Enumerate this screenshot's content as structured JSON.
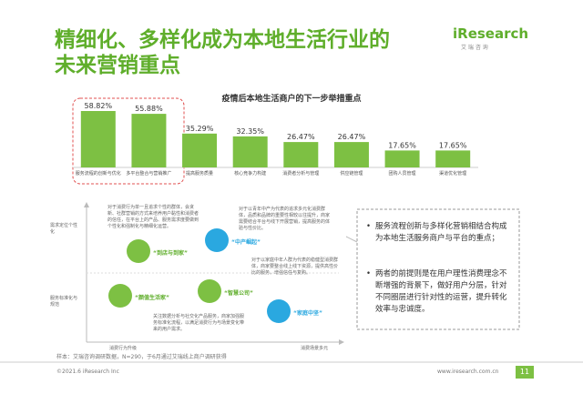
{
  "header": {
    "title_line1": "精细化、多样化成为本地生活行业的",
    "title_line2": "未来营销重点",
    "logo": "iResearch",
    "logo_sub": "艾 瑞 咨 询"
  },
  "chart_data": {
    "type": "bar",
    "title": "疫情后本地生活商户的下一步举措重点",
    "categories": [
      "服务流程的创新与优化",
      "多平台整合与营销推广",
      "提高服务质量",
      "核心竞争力构建",
      "消费者分析与管理",
      "供应链管理",
      "团购人员管理",
      "渠道优化管理"
    ],
    "values": [
      58.82,
      55.88,
      35.29,
      32.35,
      26.47,
      26.47,
      17.65,
      17.65
    ],
    "value_labels": [
      "58.82%",
      "55.88%",
      "35.29%",
      "32.35%",
      "26.47%",
      "26.47%",
      "17.65%",
      "17.65%"
    ],
    "color": "#7dc043"
  },
  "diagram": {
    "y_top": "需求定位个性化",
    "y_bottom": "服务标准化与规范",
    "x_left": "消费行为升级",
    "x_right": "消费场景多元",
    "segments": [
      "“到店与到家”",
      "“中产崛起”",
      "“颜值生活家”",
      "“智慧公司”",
      "“家庭中坚”"
    ],
    "notes": [
      "对于消费行为单一且追求个性的群体，会贪新、社群营销的方式来培养用户黏性和消费者的信任，在平台上的产品、服务需求度要做到个性化和强制化与精细化运营。",
      "对于以青年中产为代表的追求多元化消费群体，品质和品牌的重要性相较以往提升，商家需要结合平台与线下开展营销，提高服务的体验与性价比。",
      "对于以家庭中年人群为代表的稳健型消费群体，商家要整合线上线下资源，提供高性价比的服务，增强信任与复购。",
      "关注数据分析与社交化产品服务，商家加强服务标准化流程，以满足消费行为与场景变化带来的用户需求。"
    ]
  },
  "summary": [
    "服务流程创新与多样化营销相结合构成为本地生活服务商户与平台的重点；",
    "两者的前提则是在用户理性消费理念不断增强的背景下，做好用户分层，针对不同圈层进行针对性的运营，提升转化效率与忠诚度。"
  ],
  "footer": {
    "source": "样本：艾瑞咨询调研数据，N=290，于6月通过艾瑞线上商户调研获得",
    "copyright": "©2021.6 iResearch Inc",
    "url": "www.iresearch.com.cn",
    "page": "11"
  }
}
